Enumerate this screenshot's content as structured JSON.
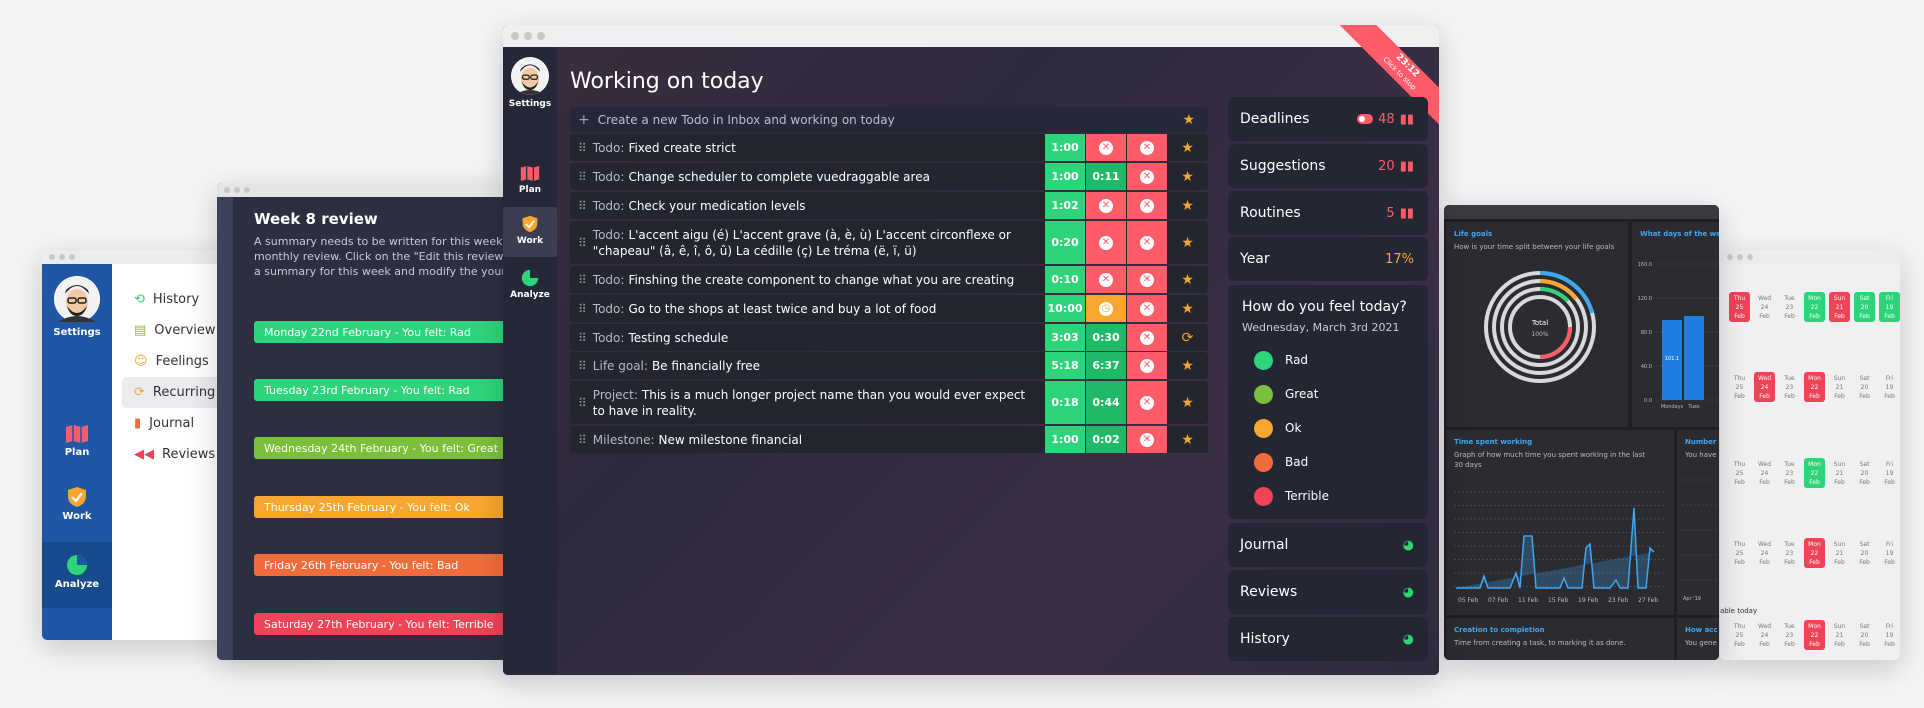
{
  "review_win": {
    "title": "Week 8 review",
    "desc": [
      "A summary needs to be written for this week. Th",
      "monthly review. Click on the \"Edit this review\" but",
      "a summary for this week and modify the your ra"
    ],
    "days": [
      {
        "label": "Monday 22nd February - You felt: Rad",
        "color": "#2ed47a"
      },
      {
        "label": "Tuesday 23rd February - You felt: Rad",
        "color": "#2ed47a"
      },
      {
        "label": "Wednesday 24th February - You felt: Great",
        "color": "#7cbf3a"
      },
      {
        "label": "Thursday 25th February - You felt: Ok",
        "color": "#f7a630"
      },
      {
        "label": "Friday 26th February - You felt: Bad",
        "color": "#f26b3a"
      },
      {
        "label": "Saturday 27th February - You felt: Terrible",
        "color": "#ef4357"
      }
    ]
  },
  "settings_win": {
    "settings_label": "Settings",
    "nav": [
      "Plan",
      "Work",
      "Analyze"
    ],
    "menu": [
      "History",
      "Overview",
      "Feelings",
      "Recurring",
      "Journal",
      "Reviews"
    ]
  },
  "main": {
    "settings_label": "Settings",
    "nav": [
      "Plan",
      "Work",
      "Analyze"
    ],
    "title": "Working on today",
    "timer": {
      "time": "23:12",
      "hint": "Click to stop"
    },
    "new_todo_placeholder": "Create a new Todo in Inbox and working on today",
    "todos": [
      {
        "prefix": "Todo:",
        "text": "Fixed create strict",
        "estimate": "1:00",
        "spent": "",
        "spent_color": "red",
        "action": "star"
      },
      {
        "prefix": "Todo:",
        "text": "Change scheduler to complete vuedraggable area",
        "estimate": "1:00",
        "spent": "0:11",
        "spent_color": "green",
        "action": "star"
      },
      {
        "prefix": "Todo:",
        "text": "Check your medication levels",
        "estimate": "1:02",
        "spent": "",
        "spent_color": "red",
        "action": "star"
      },
      {
        "prefix": "Todo:",
        "text": "L'accent aigu (é) L'accent grave (à, è, ù) L'accent circonflexe or \"chapeau\" (â, ê, î, ô, û) La cédille (ç) Le tréma (ë, ï, ü)",
        "estimate": "0:20",
        "spent": "",
        "spent_color": "red",
        "action": "star"
      },
      {
        "prefix": "Todo:",
        "text": "Finshing the create component to change what you are creating",
        "estimate": "0:10",
        "spent": "",
        "spent_color": "red",
        "action": "star"
      },
      {
        "prefix": "Todo:",
        "text": "Go to the shops at least twice and buy a lot of food",
        "estimate": "10:00",
        "spent": "",
        "spent_color": "orange",
        "action": "star"
      },
      {
        "prefix": "Todo:",
        "text": "Testing schedule",
        "estimate": "3:03",
        "spent": "0:30",
        "spent_color": "green",
        "action": "repeat"
      },
      {
        "prefix": "Life goal:",
        "text": "Be financially free",
        "estimate": "5:18",
        "spent": "6:37",
        "spent_color": "green",
        "action": "star"
      },
      {
        "prefix": "Project:",
        "text": "This is a much longer project name than you would ever expect to have in reality.",
        "estimate": "0:18",
        "spent": "0:44",
        "spent_color": "green",
        "action": "star"
      },
      {
        "prefix": "Milestone:",
        "text": "New milestone financial",
        "estimate": "1:00",
        "spent": "0:02",
        "spent_color": "green",
        "action": "star"
      }
    ],
    "side": {
      "deadlines": {
        "label": "Deadlines",
        "value": "48"
      },
      "suggestions": {
        "label": "Suggestions",
        "value": "20"
      },
      "routines": {
        "label": "Routines",
        "value": "5"
      },
      "year": {
        "label": "Year",
        "value": "17%"
      },
      "feel": {
        "title": "How do you feel today?",
        "date": "Wednesday, March 3rd 2021",
        "options": [
          "Rad",
          "Great",
          "Ok",
          "Bad",
          "Terrible"
        ]
      },
      "journal": "Journal",
      "reviews": "Reviews",
      "history": "History"
    }
  },
  "analytics": {
    "life_goals": {
      "title": "Life goals",
      "desc": "How is your time split between your life goals",
      "center": "Total",
      "center_val": "100%"
    },
    "days_week": {
      "title": "What days of the we",
      "yticks": [
        "160.0",
        "120.0",
        "80.0",
        "40.0",
        "0.0"
      ],
      "bar_label": "101.1",
      "xlabels": [
        "Mondays",
        "Tues"
      ]
    },
    "time_working": {
      "title": "Time spent working",
      "desc": "Graph of how much time you spent working in the last 30 days",
      "xlabels": [
        "05 Feb",
        "07 Feb",
        "11 Feb",
        "15 Feb",
        "19 Feb",
        "23 Feb",
        "27 Feb"
      ]
    },
    "number_today": {
      "title": "Number",
      "title_tail": "oday",
      "desc": "You have"
    },
    "creation": {
      "title": "Creation to completion",
      "desc": "Time from creating a task, to marking it as done."
    },
    "how_acc": {
      "title": "How acc",
      "desc": "You gene"
    },
    "apr": "Apr '19",
    "lu": "Lu",
    "able_today": "able today"
  },
  "calendar": {
    "rows": [
      [
        [
          "Thu",
          "25",
          "Feb",
          "red"
        ],
        [
          "Wed",
          "24",
          "Feb",
          ""
        ],
        [
          "Tue",
          "23",
          "Feb",
          ""
        ],
        [
          "Mon",
          "22",
          "Feb",
          "green"
        ],
        [
          "Sun",
          "21",
          "Feb",
          "red"
        ],
        [
          "Sat",
          "20",
          "Feb",
          "green"
        ],
        [
          "Fri",
          "19",
          "Feb",
          "green"
        ]
      ],
      [
        [
          "Thu",
          "25",
          "Feb",
          ""
        ],
        [
          "Wed",
          "24",
          "Feb",
          "red"
        ],
        [
          "Tue",
          "23",
          "Feb",
          ""
        ],
        [
          "Mon",
          "22",
          "Feb",
          "red"
        ],
        [
          "Sun",
          "21",
          "Feb",
          ""
        ],
        [
          "Sat",
          "20",
          "Feb",
          ""
        ],
        [
          "Fri",
          "19",
          "Feb",
          ""
        ]
      ],
      [
        [
          "Thu",
          "25",
          "Feb",
          ""
        ],
        [
          "Wed",
          "24",
          "Feb",
          ""
        ],
        [
          "Tue",
          "23",
          "Feb",
          ""
        ],
        [
          "Mon",
          "22",
          "Feb",
          "green"
        ],
        [
          "Sun",
          "21",
          "Feb",
          ""
        ],
        [
          "Sat",
          "20",
          "Feb",
          ""
        ],
        [
          "Fri",
          "19",
          "Feb",
          ""
        ]
      ],
      [
        [
          "Thu",
          "25",
          "Feb",
          ""
        ],
        [
          "Wed",
          "24",
          "Feb",
          ""
        ],
        [
          "Tue",
          "23",
          "Feb",
          ""
        ],
        [
          "Mon",
          "22",
          "Feb",
          "red"
        ],
        [
          "Sun",
          "21",
          "Feb",
          ""
        ],
        [
          "Sat",
          "20",
          "Feb",
          ""
        ],
        [
          "Fri",
          "19",
          "Feb",
          ""
        ]
      ],
      [
        [
          "Thu",
          "25",
          "Feb",
          ""
        ],
        [
          "Wed",
          "24",
          "Feb",
          ""
        ],
        [
          "Tue",
          "23",
          "Feb",
          ""
        ],
        [
          "Mon",
          "22",
          "Feb",
          "red"
        ],
        [
          "Sun",
          "21",
          "Feb",
          ""
        ],
        [
          "Sat",
          "20",
          "Feb",
          ""
        ],
        [
          "Fri",
          "19",
          "Feb",
          ""
        ]
      ]
    ]
  },
  "colors": {
    "green": "#2ed47a",
    "red": "#ff5c6a",
    "orange": "#f7a630",
    "blue": "#1f57a4",
    "accent_blue": "#3fa6f2"
  }
}
